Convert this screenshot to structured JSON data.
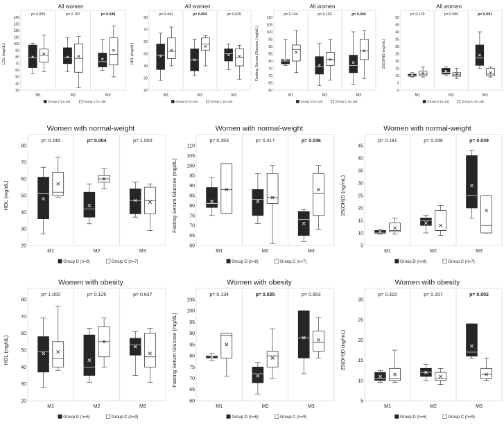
{
  "figure": {
    "legend_dark_prefix": "Group D",
    "legend_light_prefix": "Group C",
    "colors": {
      "dark": "#262626",
      "light": "#ffffff",
      "frame": "#d9d9d9",
      "stroke": "#222222"
    }
  },
  "chart_data": [
    {
      "type": "box",
      "title": "All women",
      "ylabel": "LDL (mg/dL)",
      "ylim": [
        30,
        140
      ],
      "yticks": [
        30,
        40,
        50,
        60,
        70,
        80,
        90,
        100,
        110,
        120,
        130,
        140
      ],
      "categories": [
        "M1",
        "M2",
        "M3"
      ],
      "pvalues": [
        "p= 0.835",
        "p= 0.787",
        "p= 0.048"
      ],
      "p_bold": [
        false,
        false,
        true
      ],
      "series": [
        {
          "name": "Group D (n=14)",
          "boxes": [
            {
              "min": 55,
              "q1": 64,
              "med": 79,
              "q3": 98,
              "max": 101,
              "mean": 80
            },
            {
              "min": 58,
              "q1": 70,
              "med": 79,
              "q3": 94,
              "max": 109,
              "mean": 80
            },
            {
              "min": 60,
              "q1": 65,
              "med": 73,
              "q3": 86,
              "max": 107,
              "mean": 77
            }
          ]
        },
        {
          "name": "Group C (n=16)",
          "boxes": [
            {
              "min": 58,
              "q1": 72,
              "med": 83,
              "q3": 92,
              "max": 113,
              "mean": 85
            },
            {
              "min": 34,
              "q1": 57,
              "med": 78,
              "q3": 100,
              "max": 111,
              "mean": 81
            },
            {
              "min": 50,
              "q1": 68,
              "med": 84,
              "q3": 109,
              "max": 127,
              "mean": 90
            }
          ]
        }
      ]
    },
    {
      "type": "box",
      "title": "All women",
      "ylabel": "HDL (mg/dL)",
      "ylim": [
        20,
        80
      ],
      "yticks": [
        20,
        30,
        40,
        50,
        60,
        70,
        80
      ],
      "categories": [
        "M1",
        "M2",
        "M3"
      ],
      "pvalues": [
        "p= 0.441",
        "p= 0.004",
        "p= 0.629"
      ],
      "p_bold": [
        false,
        true,
        false
      ],
      "series": [
        {
          "name": "Group D (n=14)",
          "boxes": [
            {
              "min": 28,
              "q1": 37,
              "med": 49,
              "q3": 58,
              "max": 67,
              "mean": 48
            },
            {
              "min": 32,
              "q1": 36,
              "med": 45,
              "q3": 54,
              "max": 62,
              "mean": 45
            },
            {
              "min": 37,
              "q1": 44,
              "med": 50,
              "q3": 54,
              "max": 58,
              "mean": 49
            }
          ]
        },
        {
          "name": "Group C (n=16)",
          "boxes": [
            {
              "min": 40,
              "q1": 46,
              "med": 52,
              "q3": 63,
              "max": 72,
              "mean": 53
            },
            {
              "min": 40,
              "q1": 53,
              "med": 58,
              "q3": 63,
              "max": 65,
              "mean": 56
            },
            {
              "min": 29,
              "q1": 40,
              "med": 47,
              "q3": 54,
              "max": 57,
              "mean": 48
            }
          ]
        }
      ]
    },
    {
      "type": "box",
      "title": "All women",
      "ylabel": "Fasting Serum Glucose (mg/dL)",
      "ylim": [
        60,
        110
      ],
      "yticks": [
        60,
        65,
        70,
        75,
        80,
        85,
        90,
        95,
        100,
        105,
        110
      ],
      "categories": [
        "M1",
        "M2",
        "M3"
      ],
      "pvalues": [
        "p= 0.144",
        "p= 0.163",
        "p= 0.044"
      ],
      "p_bold": [
        false,
        false,
        true
      ],
      "series": [
        {
          "name": "Group D (n=14)",
          "boxes": [
            {
              "min": 77,
              "q1": 78,
              "med": 80,
              "q3": 81,
              "max": 95,
              "mean": 81
            },
            {
              "min": 63,
              "q1": 71,
              "med": 76,
              "q3": 83,
              "max": 92,
              "mean": 77
            },
            {
              "min": 64,
              "q1": 72,
              "med": 77,
              "q3": 84,
              "max": 100,
              "mean": 79
            }
          ]
        },
        {
          "name": "Group C (n=16)",
          "boxes": [
            {
              "min": 72,
              "q1": 80,
              "med": 88,
              "q3": 91,
              "max": 101,
              "mean": 86
            },
            {
              "min": 67,
              "q1": 77,
              "med": 81,
              "q3": 86,
              "max": 95,
              "mean": 81
            },
            {
              "min": 68,
              "q1": 81,
              "med": 87,
              "q3": 95,
              "max": 101,
              "mean": 87
            }
          ]
        }
      ]
    },
    {
      "type": "box",
      "title": "All women",
      "ylabel": "25(OH)D (ng/mL)",
      "ylim": [
        0,
        50
      ],
      "yticks": [
        0,
        5,
        10,
        15,
        20,
        25,
        30,
        35,
        40,
        45,
        50
      ],
      "categories": [
        "M1",
        "M2",
        "M3"
      ],
      "pvalues": [
        "p= 0.129",
        "p= 0.056",
        "p= 0.001"
      ],
      "p_bold": [
        false,
        false,
        true
      ],
      "series": [
        {
          "name": "Group D (n=14)",
          "boxes": [
            {
              "min": 9,
              "q1": 9.5,
              "med": 10,
              "q3": 11,
              "max": 12,
              "mean": 10.5
            },
            {
              "min": 10,
              "q1": 11,
              "med": 12,
              "q3": 15,
              "max": 16,
              "mean": 13
            },
            {
              "min": 15,
              "q1": 17,
              "med": 22,
              "q3": 31,
              "max": 40,
              "mean": 24
            }
          ]
        },
        {
          "name": "Group C (n=16)",
          "boxes": [
            {
              "min": 9,
              "q1": 10,
              "med": 11,
              "q3": 13,
              "max": 16,
              "mean": 11.5
            },
            {
              "min": 8,
              "q1": 9.5,
              "med": 10.5,
              "q3": 12,
              "max": 15,
              "mean": 11
            },
            {
              "min": 9,
              "q1": 10,
              "med": 11,
              "q3": 15,
              "max": 16,
              "mean": 12
            }
          ]
        }
      ]
    },
    {
      "type": "box",
      "title": "Women with normal-weight",
      "ylabel": "HDL (mg/dL)",
      "ylim": [
        20,
        80
      ],
      "yticks": [
        20,
        30,
        40,
        50,
        60,
        70,
        80
      ],
      "categories": [
        "M1",
        "M2",
        "M3"
      ],
      "pvalues": [
        "p= 0.246",
        "p= 0.004",
        "p= 1.000"
      ],
      "p_bold": [
        false,
        true,
        false
      ],
      "series": [
        {
          "name": "Group D (n=8)",
          "boxes": [
            {
              "min": 27,
              "q1": 36,
              "med": 51,
              "q3": 61,
              "max": 67,
              "mean": 48
            },
            {
              "min": 33,
              "q1": 37,
              "med": 42,
              "q3": 52,
              "max": 57,
              "mean": 44
            },
            {
              "min": 37,
              "q1": 39,
              "med": 47,
              "q3": 54,
              "max": 58,
              "mean": 47
            }
          ]
        },
        {
          "name": "Group C (n=7)",
          "boxes": [
            {
              "min": 49,
              "q1": 50,
              "med": 52,
              "q3": 64,
              "max": 73,
              "mean": 57
            },
            {
              "min": 54,
              "q1": 58,
              "med": 60,
              "q3": 62,
              "max": 66,
              "mean": 60
            },
            {
              "min": 29,
              "q1": 39,
              "med": 47,
              "q3": 55,
              "max": 57,
              "mean": 46
            }
          ]
        }
      ]
    },
    {
      "type": "box",
      "title": "Women with normal-weight",
      "ylabel": "Fasting Serum Glucose (mg/dL)",
      "ylim": [
        60,
        110
      ],
      "yticks": [
        60,
        65,
        70,
        75,
        80,
        85,
        90,
        95,
        100,
        105,
        110
      ],
      "categories": [
        "M1",
        "M2",
        "M3"
      ],
      "pvalues": [
        "p= 0.353",
        "p= 0.417",
        "p= 0.036"
      ],
      "p_bold": [
        false,
        false,
        true
      ],
      "series": [
        {
          "name": "Group D (n=8)",
          "boxes": [
            {
              "min": 75,
              "q1": 79,
              "med": 81,
              "q3": 89,
              "max": 94,
              "mean": 82
            },
            {
              "min": 71,
              "q1": 75,
              "med": 83,
              "q3": 88,
              "max": 96,
              "mean": 82
            },
            {
              "min": 62,
              "q1": 65,
              "med": 73,
              "q3": 77,
              "max": 78,
              "mean": 71
            }
          ]
        },
        {
          "name": "Group C (n=7)",
          "boxes": [
            {
              "min": 76,
              "q1": 76,
              "med": 88,
              "q3": 101,
              "max": 101,
              "mean": 88
            },
            {
              "min": 61,
              "q1": 81,
              "med": 84,
              "q3": 96,
              "max": 100,
              "mean": 84
            },
            {
              "min": 68,
              "q1": 75,
              "med": 86,
              "q3": 96,
              "max": 100,
              "mean": 88
            }
          ]
        }
      ]
    },
    {
      "type": "box",
      "title": "Women with normal-weight",
      "ylabel": "25(OH)D (ng/mL)",
      "ylim": [
        5,
        45
      ],
      "yticks": [
        5,
        10,
        15,
        20,
        25,
        30,
        35,
        40,
        45
      ],
      "categories": [
        "M1",
        "M2",
        "M3"
      ],
      "pvalues": [
        "p= 0.181",
        "p= 0.246",
        "p= 0.039"
      ],
      "p_bold": [
        false,
        false,
        true
      ],
      "series": [
        {
          "name": "Group D (n=8)",
          "boxes": [
            {
              "min": 9.5,
              "q1": 9.8,
              "med": 10,
              "q3": 11,
              "max": 11.5,
              "mean": 10.5
            },
            {
              "min": 10,
              "q1": 13,
              "med": 15,
              "q3": 16,
              "max": 17,
              "mean": 14
            },
            {
              "min": 16,
              "q1": 20,
              "med": 25,
              "q3": 41,
              "max": 43,
              "mean": 29
            }
          ]
        },
        {
          "name": "Group C (n=7)",
          "boxes": [
            {
              "min": 9.5,
              "q1": 10.5,
              "med": 11,
              "q3": 14,
              "max": 16,
              "mean": 12
            },
            {
              "min": 9,
              "q1": 11,
              "med": 11,
              "q3": 19,
              "max": 21,
              "mean": 13
            },
            {
              "min": 10,
              "q1": 10,
              "med": 13,
              "q3": 25,
              "max": 25,
              "mean": 19
            }
          ]
        }
      ]
    },
    {
      "type": "box",
      "title": "Women with obesity",
      "ylabel": "HDL (mg/dL)",
      "ylim": [
        20,
        80
      ],
      "yticks": [
        20,
        30,
        40,
        50,
        60,
        70,
        80
      ],
      "categories": [
        "M1",
        "M2",
        "M3"
      ],
      "pvalues": [
        "p= 1.000",
        "p= 0.125",
        "p= 0.637"
      ],
      "p_bold": [
        false,
        false,
        false
      ],
      "series": [
        {
          "name": "Group D (n=6)",
          "boxes": [
            {
              "min": 28,
              "q1": 37,
              "med": 49,
              "q3": 58,
              "max": 69,
              "mean": 48
            },
            {
              "min": 31,
              "q1": 35,
              "med": 40,
              "q3": 59,
              "max": 63,
              "mean": 44
            },
            {
              "min": 35,
              "q1": 47,
              "med": 53,
              "q3": 57,
              "max": 61,
              "mean": 52
            }
          ]
        },
        {
          "name": "Group C (n=9)",
          "boxes": [
            {
              "min": 38,
              "q1": 40,
              "med": 45,
              "q3": 55,
              "max": 76,
              "mean": 49
            },
            {
              "min": 40,
              "q1": 46,
              "med": 55,
              "q3": 64,
              "max": 69,
              "mean": 55
            },
            {
              "min": 31,
              "q1": 40,
              "med": 46,
              "q3": 60,
              "max": 63,
              "mean": 48
            }
          ]
        }
      ]
    },
    {
      "type": "box",
      "title": "Women with obesity",
      "ylabel": "Fasting Serum Glucose (mg/dL)",
      "ylim": [
        60,
        105
      ],
      "yticks": [
        60,
        65,
        70,
        75,
        80,
        85,
        90,
        95,
        100,
        105
      ],
      "categories": [
        "M1",
        "M2",
        "M3"
      ],
      "pvalues": [
        "p= 0.134",
        "p= 0.025",
        "p= 0.953"
      ],
      "p_bold": [
        false,
        true,
        false
      ],
      "series": [
        {
          "name": "Group D (n=6)",
          "boxes": [
            {
              "min": 78,
              "q1": 79,
              "med": 80,
              "q3": 80,
              "max": 81,
              "mean": 79.5
            },
            {
              "min": 63,
              "q1": 68,
              "med": 72,
              "q3": 75,
              "max": 77,
              "mean": 71
            },
            {
              "min": 72,
              "q1": 79,
              "med": 88,
              "q3": 100,
              "max": 100,
              "mean": 88
            }
          ]
        },
        {
          "name": "Group C (n=9)",
          "boxes": [
            {
              "min": 71,
              "q1": 79,
              "med": 89,
              "q3": 90,
              "max": 90,
              "mean": 85
            },
            {
              "min": 70,
              "q1": 75,
              "med": 80,
              "q3": 82,
              "max": 92,
              "mean": 79
            },
            {
              "min": 79,
              "q1": 82,
              "med": 86,
              "q3": 91,
              "max": 97,
              "mean": 87
            }
          ]
        }
      ]
    },
    {
      "type": "box",
      "title": "Women with obesity",
      "ylabel": "25(OH)D (ng/mL)",
      "ylim": [
        5,
        30
      ],
      "yticks": [
        5,
        10,
        15,
        20,
        25,
        30
      ],
      "categories": [
        "M1",
        "M2",
        "M3"
      ],
      "pvalues": [
        "p= 0.315",
        "p= 0.157",
        "p= 0.002"
      ],
      "p_bold": [
        false,
        false,
        true
      ],
      "series": [
        {
          "name": "Group D (n=6)",
          "boxes": [
            {
              "min": 9.5,
              "q1": 10,
              "med": 10.5,
              "q3": 12,
              "max": 12.5,
              "mean": 11
            },
            {
              "min": 10,
              "q1": 11,
              "med": 12,
              "q3": 13,
              "max": 14,
              "mean": 12
            },
            {
              "min": 15.5,
              "q1": 16,
              "med": 17,
              "q3": 24,
              "max": 24,
              "mean": 18.5
            }
          ]
        },
        {
          "name": "Group C (n=9)",
          "boxes": [
            {
              "min": 9.5,
              "q1": 10,
              "med": 10.5,
              "q3": 13,
              "max": 17.5,
              "mean": 11.5
            },
            {
              "min": 9,
              "q1": 10,
              "med": 10.5,
              "q3": 12,
              "max": 13,
              "mean": 11
            },
            {
              "min": 10,
              "q1": 10.5,
              "med": 11.5,
              "q3": 13,
              "max": 15.5,
              "mean": 11.5
            }
          ]
        }
      ]
    }
  ]
}
